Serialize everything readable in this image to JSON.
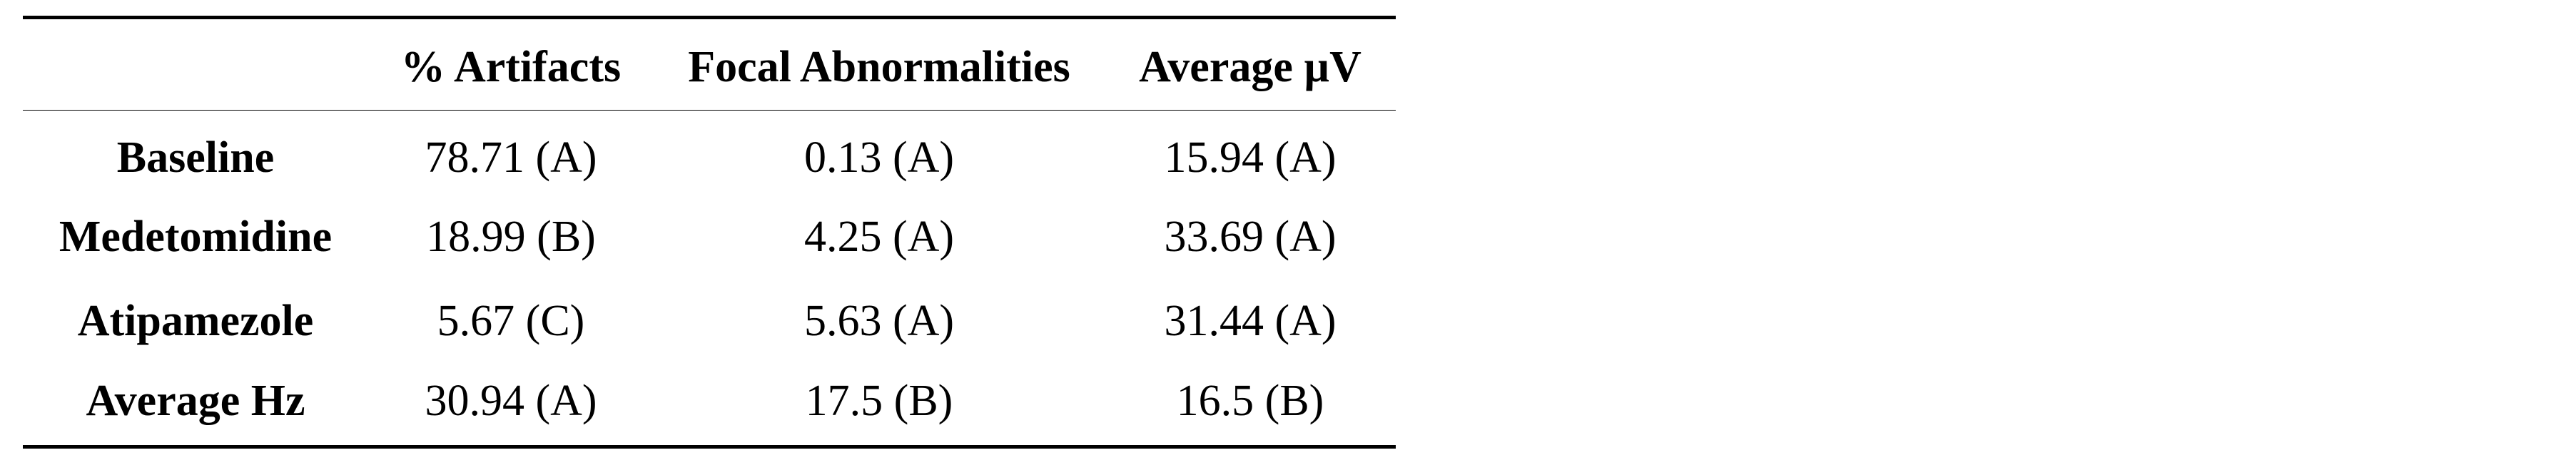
{
  "table": {
    "columns": [
      "",
      "% Artifacts",
      "Focal Abnormalities",
      "Average µV"
    ],
    "rows": [
      {
        "label": "Baseline",
        "cells": [
          "78.71 (A)",
          "0.13 (A)",
          "15.94 (A)"
        ]
      },
      {
        "label": "Medetomidine",
        "cells": [
          "18.99 (B)",
          "4.25 (A)",
          "33.69 (A)"
        ]
      },
      {
        "label": "Atipamezole",
        "cells": [
          "5.67 (C)",
          "5.63 (A)",
          "31.44 (A)"
        ]
      },
      {
        "label": "Average Hz",
        "cells": [
          "30.94 (A)",
          "17.5 (B)",
          "16.5 (B)"
        ]
      }
    ]
  }
}
